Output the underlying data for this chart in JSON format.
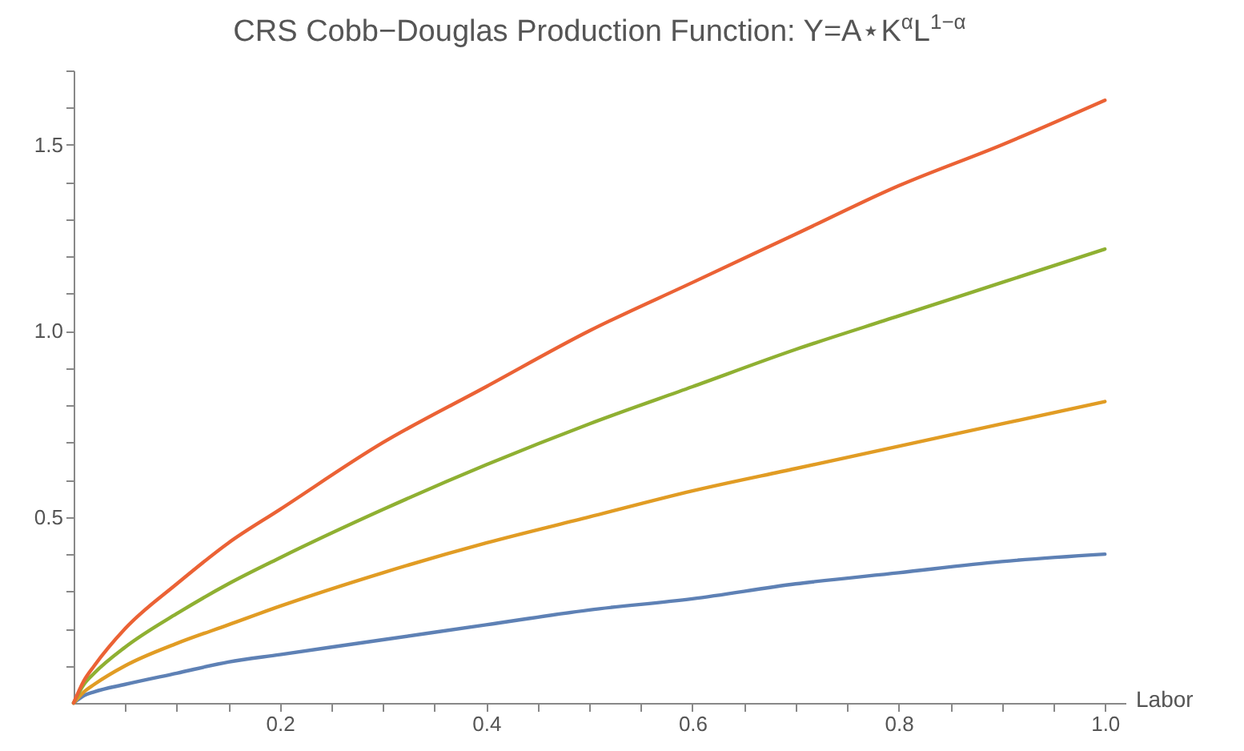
{
  "chart_data": {
    "type": "line",
    "title": "CRS Cobb−Douglas Production Function: Y=A⋆K$^{α}$L$^{1−α}$",
    "xlabel": "Labor",
    "x": [
      0,
      0.01,
      0.02,
      0.05,
      0.1,
      0.15,
      0.2,
      0.3,
      0.4,
      0.5,
      0.6,
      0.7,
      0.8,
      0.9,
      1.0
    ],
    "series": [
      {
        "color": "#5e81b5",
        "values": [
          0,
          0.02,
          0.03,
          0.05,
          0.08,
          0.11,
          0.13,
          0.17,
          0.21,
          0.25,
          0.28,
          0.32,
          0.35,
          0.38,
          0.4
        ]
      },
      {
        "color": "#e19c24",
        "values": [
          0,
          0.03,
          0.05,
          0.1,
          0.16,
          0.21,
          0.26,
          0.35,
          0.43,
          0.5,
          0.57,
          0.63,
          0.69,
          0.75,
          0.81
        ]
      },
      {
        "color": "#8fb032",
        "values": [
          0,
          0.05,
          0.08,
          0.15,
          0.24,
          0.32,
          0.39,
          0.52,
          0.64,
          0.75,
          0.85,
          0.95,
          1.04,
          1.13,
          1.22
        ]
      },
      {
        "color": "#eb6235",
        "values": [
          0,
          0.06,
          0.1,
          0.2,
          0.32,
          0.43,
          0.52,
          0.7,
          0.85,
          1.0,
          1.13,
          1.26,
          1.39,
          1.5,
          1.62
        ]
      }
    ],
    "xlim": [
      0,
      1.02
    ],
    "ylim": [
      0,
      1.7
    ],
    "xticks": [
      {
        "value": 0.05,
        "label": null
      },
      {
        "value": 0.1,
        "label": null
      },
      {
        "value": 0.15,
        "label": null
      },
      0.2,
      {
        "value": 0.25,
        "label": null
      },
      {
        "value": 0.3,
        "label": null
      },
      {
        "value": 0.35,
        "label": null
      },
      0.4,
      {
        "value": 0.45,
        "label": null
      },
      {
        "value": 0.5,
        "label": null
      },
      {
        "value": 0.55,
        "label": null
      },
      0.6,
      {
        "value": 0.65,
        "label": null
      },
      {
        "value": 0.7,
        "label": null
      },
      {
        "value": 0.75,
        "label": null
      },
      0.8,
      {
        "value": 0.85,
        "label": null
      },
      {
        "value": 0.9,
        "label": null
      },
      {
        "value": 0.95,
        "label": null
      },
      {
        "value": 1.0,
        "label": "1.0"
      }
    ],
    "yticks": [
      {
        "value": 0.1,
        "label": null
      },
      {
        "value": 0.2,
        "label": null
      },
      {
        "value": 0.3,
        "label": null
      },
      {
        "value": 0.4,
        "label": null
      },
      0.5,
      {
        "value": 0.6,
        "label": null
      },
      {
        "value": 0.7,
        "label": null
      },
      {
        "value": 0.8,
        "label": null
      },
      {
        "value": 0.9,
        "label": null
      },
      {
        "value": 1.0,
        "label": "1.0"
      },
      {
        "value": 1.1,
        "label": null
      },
      {
        "value": 1.2,
        "label": null
      },
      {
        "value": 1.3,
        "label": null
      },
      {
        "value": 1.4,
        "label": null
      },
      1.5,
      {
        "value": 1.6,
        "label": null
      },
      {
        "value": 1.7,
        "label": null
      }
    ],
    "marker": "none",
    "line_style": "solid"
  }
}
